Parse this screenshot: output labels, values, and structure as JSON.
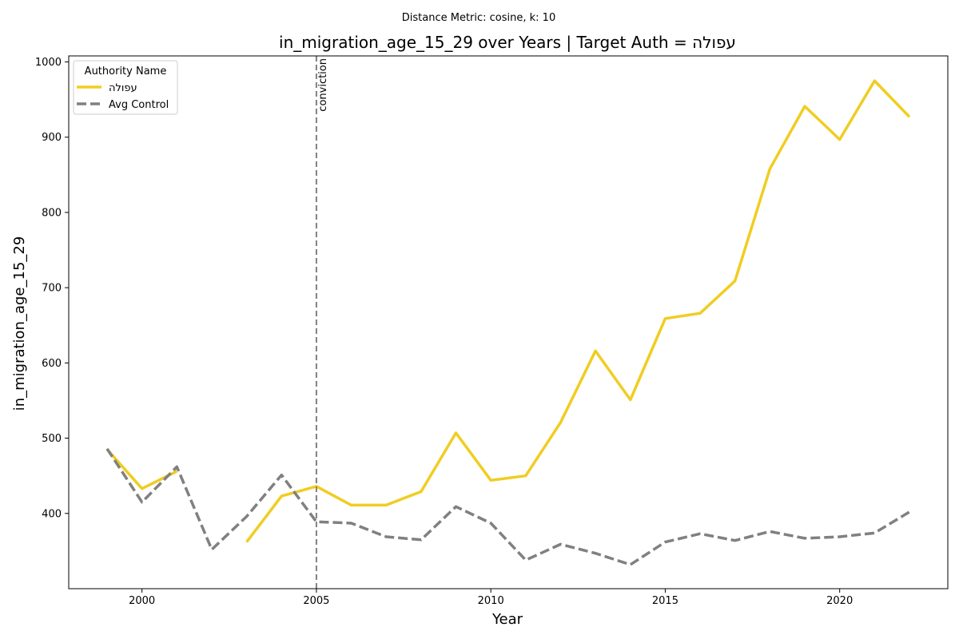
{
  "suptitle": "Distance Metric: cosine, k: 10",
  "chart_data": {
    "type": "line",
    "title": "in_migration_age_15_29 over Years | Target Auth = עפולה",
    "xlabel": "Year",
    "ylabel": "in_migration_age_15_29",
    "xlim": [
      1997.9,
      2023.1
    ],
    "ylim": [
      300,
      1008
    ],
    "x_ticks": [
      2000,
      2005,
      2010,
      2015,
      2020
    ],
    "y_ticks": [
      400,
      500,
      600,
      700,
      800,
      900,
      1000
    ],
    "grid": false,
    "legend": {
      "title": "Authority Name",
      "placement": "top-left",
      "entries": [
        "עפולה",
        "Avg Control"
      ]
    },
    "annotations": [
      {
        "type": "vline",
        "x": 2005,
        "label": "conviction",
        "color": "#808080",
        "style": "dashed"
      }
    ],
    "series": [
      {
        "name": "עפולה",
        "color": "#f0cd22",
        "style": "solid",
        "x": [
          1999,
          2000,
          2001,
          2002,
          2003,
          2004,
          2005,
          2006,
          2007,
          2008,
          2009,
          2010,
          2011,
          2012,
          2013,
          2014,
          2015,
          2016,
          2017,
          2018,
          2019,
          2020,
          2021,
          2022
        ],
        "values": [
          485,
          433,
          456,
          null,
          362,
          423,
          436,
          411,
          411,
          429,
          507,
          444,
          450,
          521,
          616,
          551,
          659,
          666,
          709,
          858,
          941,
          897,
          975,
          927
        ]
      },
      {
        "name": "Avg Control",
        "color": "#808080",
        "style": "dashed",
        "x": [
          1999,
          2000,
          2001,
          2002,
          2003,
          2004,
          2005,
          2006,
          2007,
          2008,
          2009,
          2010,
          2011,
          2012,
          2013,
          2014,
          2015,
          2016,
          2017,
          2018,
          2019,
          2020,
          2021,
          2022
        ],
        "values": [
          486,
          415,
          462,
          352,
          396,
          451,
          389,
          387,
          369,
          365,
          409,
          387,
          338,
          359,
          347,
          332,
          362,
          373,
          364,
          376,
          367,
          369,
          374,
          402
        ]
      }
    ]
  }
}
